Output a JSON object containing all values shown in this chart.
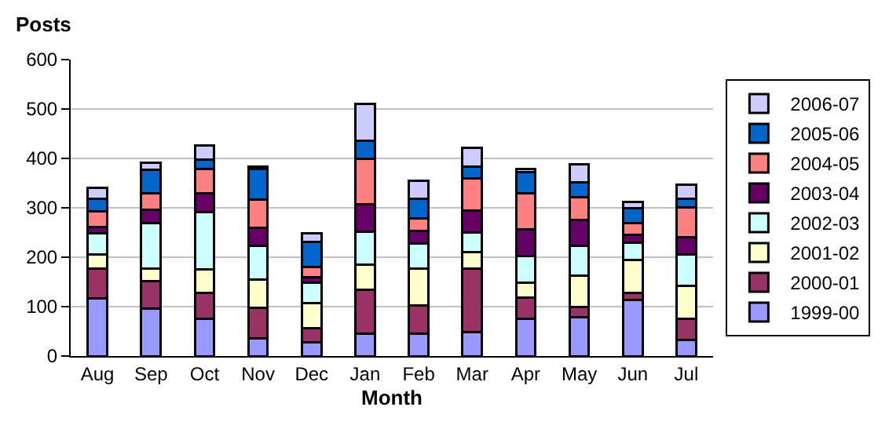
{
  "chart_data": {
    "type": "bar",
    "stacked": true,
    "ylabel": "Posts",
    "xlabel": "Month",
    "categories": [
      "Aug",
      "Sep",
      "Oct",
      "Nov",
      "Dec",
      "Jan",
      "Feb",
      "Mar",
      "Apr",
      "May",
      "Jun",
      "Jul"
    ],
    "series": [
      {
        "name": "1999-00",
        "color": "#9999ff",
        "values": [
          116,
          96,
          75,
          35,
          28,
          45,
          45,
          48,
          75,
          79,
          114,
          33
        ]
      },
      {
        "name": "2000-01",
        "color": "#993366",
        "values": [
          61,
          56,
          53,
          63,
          29,
          89,
          58,
          129,
          43,
          21,
          14,
          42
        ]
      },
      {
        "name": "2001-02",
        "color": "#ffffcc",
        "values": [
          29,
          25,
          47,
          57,
          50,
          51,
          74,
          34,
          31,
          63,
          66,
          67
        ]
      },
      {
        "name": "2002-03",
        "color": "#ccffff",
        "values": [
          42,
          92,
          117,
          68,
          42,
          67,
          51,
          39,
          54,
          60,
          36,
          64
        ]
      },
      {
        "name": "2003-04",
        "color": "#660066",
        "values": [
          13,
          27,
          37,
          36,
          11,
          55,
          25,
          44,
          54,
          53,
          15,
          34
        ]
      },
      {
        "name": "2004-05",
        "color": "#ff8080",
        "values": [
          32,
          33,
          49,
          57,
          20,
          92,
          26,
          66,
          72,
          45,
          24,
          61
        ]
      },
      {
        "name": "2005-06",
        "color": "#0066cc",
        "values": [
          26,
          48,
          19,
          62,
          51,
          36,
          40,
          24,
          43,
          31,
          30,
          18
        ]
      },
      {
        "name": "2006-07",
        "color": "#ccccff",
        "values": [
          21,
          14,
          29,
          6,
          18,
          75,
          36,
          38,
          6,
          36,
          13,
          28
        ]
      }
    ],
    "ylim": [
      0,
      600
    ],
    "yticks": [
      0,
      100,
      200,
      300,
      400,
      500,
      600
    ],
    "grid": "y",
    "legend": "right"
  }
}
